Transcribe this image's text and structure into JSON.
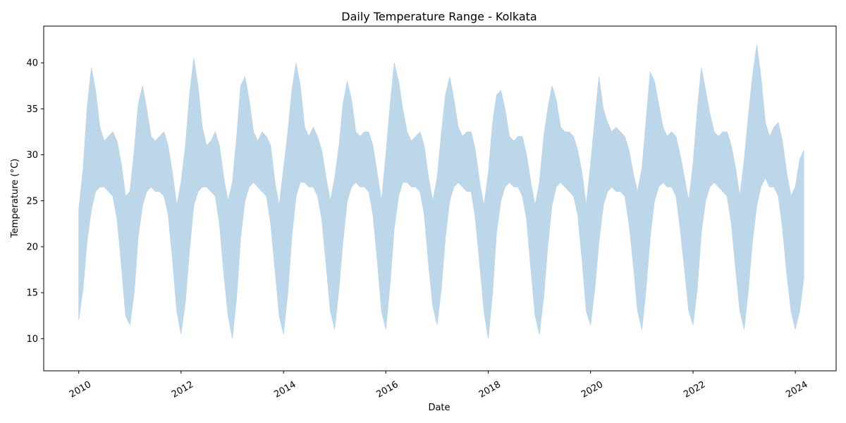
{
  "chart_data": {
    "type": "area",
    "title": "Daily Temperature Range - Kolkata",
    "xlabel": "Date",
    "ylabel": "Temperature (°C)",
    "xlim": [
      "2009-04-26",
      "2024-10-18"
    ],
    "ylim": [
      6.5,
      44
    ],
    "x_ticks": [
      "2010",
      "2012",
      "2014",
      "2016",
      "2018",
      "2020",
      "2022",
      "2024"
    ],
    "y_ticks": [
      10,
      15,
      20,
      25,
      30,
      35,
      40
    ],
    "fill_color": "#bcd6ea",
    "grid": false,
    "legend": false,
    "series": [
      {
        "x": [
          "2010-01-01",
          "2010-02-01",
          "2010-03-01",
          "2010-04-01",
          "2010-05-01",
          "2010-06-01",
          "2010-07-01",
          "2010-08-01",
          "2010-09-01",
          "2010-10-01",
          "2010-11-01",
          "2010-12-01",
          "2011-01-01",
          "2011-02-01",
          "2011-03-01",
          "2011-04-01",
          "2011-05-01",
          "2011-06-01",
          "2011-07-01",
          "2011-08-01",
          "2011-09-01",
          "2011-10-01",
          "2011-11-01",
          "2011-12-01",
          "2012-01-01",
          "2012-02-01",
          "2012-03-01",
          "2012-04-01",
          "2012-05-01",
          "2012-06-01",
          "2012-07-01",
          "2012-08-01",
          "2012-09-01",
          "2012-10-01",
          "2012-11-01",
          "2012-12-01",
          "2013-01-01",
          "2013-02-01",
          "2013-03-01",
          "2013-04-01",
          "2013-05-01",
          "2013-06-01",
          "2013-07-01",
          "2013-08-01",
          "2013-09-01",
          "2013-10-01",
          "2013-11-01",
          "2013-12-01",
          "2014-01-01",
          "2014-02-01",
          "2014-03-01",
          "2014-04-01",
          "2014-05-01",
          "2014-06-01",
          "2014-07-01",
          "2014-08-01",
          "2014-09-01",
          "2014-10-01",
          "2014-11-01",
          "2014-12-01",
          "2015-01-01",
          "2015-02-01",
          "2015-03-01",
          "2015-04-01",
          "2015-05-01",
          "2015-06-01",
          "2015-07-01",
          "2015-08-01",
          "2015-09-01",
          "2015-10-01",
          "2015-11-01",
          "2015-12-01",
          "2016-01-01",
          "2016-02-01",
          "2016-03-01",
          "2016-04-01",
          "2016-05-01",
          "2016-06-01",
          "2016-07-01",
          "2016-08-01",
          "2016-09-01",
          "2016-10-01",
          "2016-11-01",
          "2016-12-01",
          "2017-01-01",
          "2017-02-01",
          "2017-03-01",
          "2017-04-01",
          "2017-05-01",
          "2017-06-01",
          "2017-07-01",
          "2017-08-01",
          "2017-09-01",
          "2017-10-01",
          "2017-11-01",
          "2017-12-01",
          "2018-01-01",
          "2018-02-01",
          "2018-03-01",
          "2018-04-01",
          "2018-05-01",
          "2018-06-01",
          "2018-07-01",
          "2018-08-01",
          "2018-09-01",
          "2018-10-01",
          "2018-11-01",
          "2018-12-01",
          "2019-01-01",
          "2019-02-01",
          "2019-03-01",
          "2019-04-01",
          "2019-05-01",
          "2019-06-01",
          "2019-07-01",
          "2019-08-01",
          "2019-09-01",
          "2019-10-01",
          "2019-11-01",
          "2019-12-01",
          "2020-01-01",
          "2020-02-01",
          "2020-03-01",
          "2020-04-01",
          "2020-05-01",
          "2020-06-01",
          "2020-07-01",
          "2020-08-01",
          "2020-09-01",
          "2020-10-01",
          "2020-11-01",
          "2020-12-01",
          "2021-01-01",
          "2021-02-01",
          "2021-03-01",
          "2021-04-01",
          "2021-05-01",
          "2021-06-01",
          "2021-07-01",
          "2021-08-01",
          "2021-09-01",
          "2021-10-01",
          "2021-11-01",
          "2021-12-01",
          "2022-01-01",
          "2022-02-01",
          "2022-03-01",
          "2022-04-01",
          "2022-05-01",
          "2022-06-01",
          "2022-07-01",
          "2022-08-01",
          "2022-09-01",
          "2022-10-01",
          "2022-11-01",
          "2022-12-01",
          "2023-01-01",
          "2023-02-01",
          "2023-03-01",
          "2023-04-01",
          "2023-05-01",
          "2023-06-01",
          "2023-07-01",
          "2023-08-01",
          "2023-09-01",
          "2023-10-01",
          "2023-11-01",
          "2023-12-01",
          "2024-01-01",
          "2024-02-01",
          "2024-03-01"
        ],
        "low": [
          12.0,
          15.5,
          20.5,
          24.0,
          26.0,
          26.5,
          26.5,
          26.0,
          25.5,
          23.0,
          18.0,
          12.5,
          11.5,
          15.0,
          21.0,
          24.5,
          26.0,
          26.5,
          26.0,
          26.0,
          25.5,
          23.5,
          18.5,
          13.0,
          10.5,
          14.0,
          19.5,
          24.5,
          26.0,
          26.5,
          26.5,
          26.0,
          25.5,
          22.5,
          17.0,
          12.5,
          10.0,
          14.5,
          21.0,
          25.0,
          26.5,
          27.0,
          26.5,
          26.0,
          25.5,
          22.5,
          17.5,
          12.5,
          10.5,
          15.0,
          21.0,
          25.5,
          27.0,
          27.0,
          26.5,
          26.5,
          25.5,
          23.0,
          18.0,
          13.0,
          11.0,
          15.5,
          20.5,
          25.0,
          26.5,
          27.0,
          26.5,
          26.5,
          26.0,
          23.5,
          18.5,
          13.0,
          11.0,
          16.0,
          22.0,
          25.5,
          27.0,
          27.0,
          26.5,
          26.5,
          26.0,
          23.5,
          18.0,
          13.5,
          11.5,
          15.5,
          21.0,
          25.0,
          26.5,
          27.0,
          26.5,
          26.0,
          26.0,
          23.0,
          18.0,
          13.0,
          10.0,
          15.0,
          21.5,
          25.0,
          26.5,
          27.0,
          26.5,
          26.5,
          25.5,
          23.0,
          17.5,
          12.5,
          10.5,
          14.5,
          20.0,
          24.5,
          26.5,
          27.0,
          26.5,
          26.0,
          25.5,
          23.5,
          18.5,
          13.0,
          11.5,
          15.5,
          20.5,
          24.5,
          26.0,
          26.5,
          26.0,
          26.0,
          25.5,
          22.5,
          18.0,
          13.0,
          11.0,
          15.5,
          21.0,
          25.0,
          26.5,
          27.0,
          26.5,
          26.5,
          25.5,
          22.0,
          17.5,
          13.0,
          11.5,
          15.5,
          21.5,
          25.0,
          26.5,
          27.0,
          26.5,
          26.0,
          25.5,
          22.5,
          17.5,
          13.0,
          11.0,
          15.5,
          20.5,
          24.5,
          26.5,
          27.5,
          26.5,
          26.5,
          25.5,
          22.0,
          17.0,
          13.0,
          11.0,
          13.0,
          16.5
        ],
        "high": [
          24.0,
          28.5,
          35.0,
          39.5,
          37.0,
          33.0,
          31.5,
          32.0,
          32.5,
          31.5,
          29.0,
          25.5,
          26.0,
          30.5,
          35.5,
          37.5,
          35.0,
          32.0,
          31.5,
          32.0,
          32.5,
          31.0,
          28.0,
          24.5,
          27.0,
          31.0,
          36.5,
          40.5,
          37.5,
          33.0,
          31.0,
          31.5,
          32.5,
          31.0,
          27.5,
          25.0,
          27.0,
          32.0,
          37.5,
          38.5,
          36.0,
          32.5,
          31.5,
          32.5,
          32.0,
          31.0,
          27.0,
          24.5,
          28.5,
          32.5,
          37.0,
          40.0,
          37.5,
          33.0,
          32.0,
          33.0,
          32.0,
          30.5,
          27.5,
          25.0,
          27.5,
          31.0,
          35.5,
          38.0,
          36.0,
          32.5,
          32.0,
          32.5,
          32.5,
          31.0,
          28.0,
          25.0,
          30.0,
          35.5,
          40.0,
          38.0,
          35.0,
          32.5,
          31.5,
          32.0,
          32.5,
          31.0,
          27.5,
          25.0,
          27.5,
          32.5,
          36.5,
          38.5,
          36.0,
          33.0,
          32.0,
          32.5,
          32.5,
          30.5,
          27.0,
          24.5,
          28.0,
          33.5,
          36.5,
          37.0,
          35.0,
          32.0,
          31.5,
          32.0,
          32.0,
          30.0,
          27.0,
          24.5,
          27.0,
          32.0,
          35.0,
          37.5,
          36.0,
          33.0,
          32.5,
          32.5,
          32.0,
          30.5,
          28.0,
          24.5,
          29.0,
          34.0,
          38.5,
          35.0,
          33.5,
          32.5,
          33.0,
          32.5,
          32.0,
          30.5,
          28.0,
          26.0,
          28.5,
          34.0,
          39.0,
          38.0,
          35.5,
          33.0,
          32.0,
          32.5,
          32.0,
          30.0,
          27.5,
          25.0,
          29.0,
          35.0,
          39.5,
          37.0,
          34.5,
          32.5,
          32.0,
          32.5,
          32.5,
          31.0,
          28.5,
          25.5,
          29.5,
          34.5,
          38.5,
          42.0,
          38.5,
          33.5,
          32.0,
          33.0,
          33.5,
          31.5,
          28.0,
          25.5,
          26.5,
          29.5,
          30.5
        ]
      }
    ]
  }
}
